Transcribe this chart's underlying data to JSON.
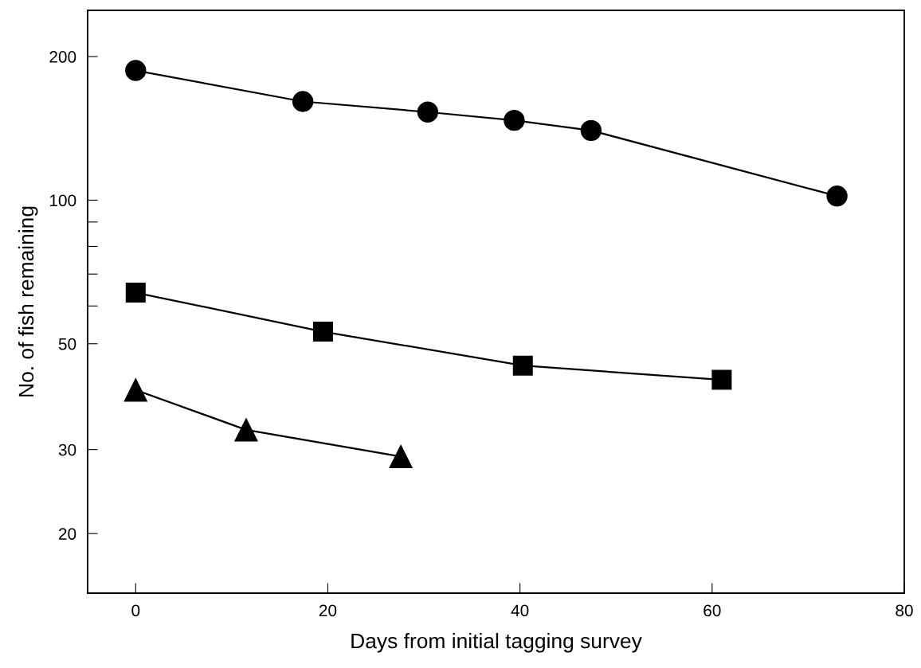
{
  "chart_data": {
    "type": "line",
    "xlabel": "Days from initial tagging survey",
    "ylabel": "No. of fish remaining",
    "log": "y",
    "xlim": [
      -5,
      80
    ],
    "xticks": [
      0,
      20,
      40,
      60,
      80
    ],
    "ylim": [
      15,
      250
    ],
    "yticks": [
      20,
      30,
      50,
      {
        "value": 60,
        "label": null
      },
      {
        "value": 70,
        "label": null
      },
      {
        "value": 80,
        "label": null
      },
      {
        "value": 90,
        "label": null
      },
      100,
      200
    ],
    "grid": false,
    "legend": false,
    "line_style": "solid",
    "series": [
      {
        "color": "#000000",
        "marker": "circle",
        "x": [
          0,
          17.4,
          30.4,
          39.4,
          47.4,
          73.0
        ],
        "values": [
          187,
          161,
          153,
          147,
          140,
          102
        ]
      },
      {
        "color": "#000000",
        "marker": "square",
        "x": [
          0,
          19.5,
          40.3,
          61.0
        ],
        "values": [
          64,
          53,
          45,
          42
        ]
      },
      {
        "color": "#000000",
        "marker": "triangle",
        "x": [
          0,
          11.5,
          27.6
        ],
        "values": [
          40,
          33,
          29
        ]
      }
    ]
  }
}
